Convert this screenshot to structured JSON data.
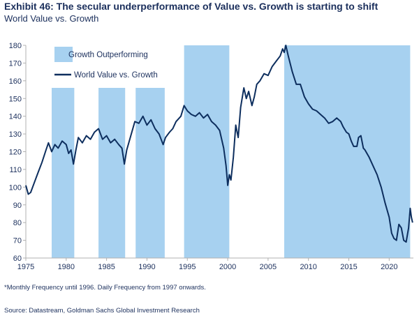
{
  "header": {
    "title": "Exhibit 46: The secular underperformance of Value vs. Growth is starting to shift",
    "subtitle": "World Value vs. Growth"
  },
  "footer": {
    "note": "*Monthly Frequency until 1996. Daily Frequency from 1997 onwards.",
    "source": "Source: Datastream, Goldman Sachs Global Investment Research"
  },
  "colors": {
    "line": "#0d2e5e",
    "shading": "#a7d1f0",
    "text": "#1b2f5c",
    "axis": "#b0b0b0"
  },
  "chart_data": {
    "type": "line",
    "xlim": [
      1975,
      2023
    ],
    "ylim": [
      60,
      180
    ],
    "x_ticks": [
      1975,
      1980,
      1985,
      1990,
      1995,
      2000,
      2005,
      2010,
      2015,
      2020
    ],
    "y_ticks": [
      60,
      70,
      80,
      90,
      100,
      110,
      120,
      130,
      140,
      150,
      160,
      170,
      180
    ],
    "legend": {
      "position": "top-left",
      "entries": [
        {
          "label": "Growth Outperforming",
          "kind": "area"
        },
        {
          "label": "World Value vs. Growth",
          "kind": "line"
        }
      ]
    },
    "shaded_periods": [
      {
        "start": 1978.2,
        "end": 1981.0,
        "ymax": 156
      },
      {
        "start": 1984.0,
        "end": 1987.3,
        "ymax": 156
      },
      {
        "start": 1988.6,
        "end": 1992.2,
        "ymax": 156
      },
      {
        "start": 1994.6,
        "end": 2000.2,
        "ymax": 180
      },
      {
        "start": 2007.0,
        "end": 2022.6,
        "ymax": 180
      }
    ],
    "series": [
      {
        "name": "World Value vs. Growth",
        "points": [
          [
            1975.0,
            101
          ],
          [
            1975.3,
            96
          ],
          [
            1975.6,
            97
          ],
          [
            1976.0,
            102
          ],
          [
            1976.5,
            108
          ],
          [
            1977.0,
            114
          ],
          [
            1977.5,
            121
          ],
          [
            1977.8,
            125
          ],
          [
            1978.2,
            120
          ],
          [
            1978.6,
            124
          ],
          [
            1979.0,
            122
          ],
          [
            1979.5,
            126
          ],
          [
            1980.0,
            124
          ],
          [
            1980.3,
            119
          ],
          [
            1980.6,
            121
          ],
          [
            1980.9,
            113
          ],
          [
            1981.2,
            121
          ],
          [
            1981.5,
            128
          ],
          [
            1982.0,
            125
          ],
          [
            1982.5,
            129
          ],
          [
            1983.0,
            127
          ],
          [
            1983.5,
            131
          ],
          [
            1984.0,
            133
          ],
          [
            1984.5,
            127
          ],
          [
            1985.0,
            129
          ],
          [
            1985.5,
            125
          ],
          [
            1986.0,
            127
          ],
          [
            1986.5,
            124
          ],
          [
            1986.9,
            122
          ],
          [
            1987.2,
            113
          ],
          [
            1987.5,
            121
          ],
          [
            1988.0,
            129
          ],
          [
            1988.5,
            137
          ],
          [
            1989.0,
            136
          ],
          [
            1989.5,
            140
          ],
          [
            1990.0,
            135
          ],
          [
            1990.5,
            138
          ],
          [
            1991.0,
            133
          ],
          [
            1991.5,
            130
          ],
          [
            1992.0,
            124
          ],
          [
            1992.3,
            128
          ],
          [
            1992.8,
            131
          ],
          [
            1993.2,
            133
          ],
          [
            1993.6,
            137
          ],
          [
            1994.2,
            140
          ],
          [
            1994.6,
            146
          ],
          [
            1995.0,
            143
          ],
          [
            1995.5,
            141
          ],
          [
            1996.0,
            140
          ],
          [
            1996.5,
            142
          ],
          [
            1997.0,
            139
          ],
          [
            1997.5,
            141
          ],
          [
            1998.0,
            137
          ],
          [
            1998.5,
            135
          ],
          [
            1999.0,
            132
          ],
          [
            1999.5,
            122
          ],
          [
            1999.8,
            112
          ],
          [
            2000.0,
            101
          ],
          [
            2000.2,
            107
          ],
          [
            2000.4,
            104
          ],
          [
            2000.7,
            117
          ],
          [
            2001.0,
            135
          ],
          [
            2001.3,
            128
          ],
          [
            2001.6,
            145
          ],
          [
            2002.0,
            156
          ],
          [
            2002.3,
            150
          ],
          [
            2002.6,
            154
          ],
          [
            2003.0,
            146
          ],
          [
            2003.3,
            151
          ],
          [
            2003.6,
            158
          ],
          [
            2004.0,
            160
          ],
          [
            2004.5,
            164
          ],
          [
            2005.0,
            163
          ],
          [
            2005.5,
            168
          ],
          [
            2006.0,
            171
          ],
          [
            2006.5,
            174
          ],
          [
            2006.8,
            178
          ],
          [
            2007.0,
            176
          ],
          [
            2007.2,
            180
          ],
          [
            2007.5,
            174
          ],
          [
            2008.0,
            165
          ],
          [
            2008.5,
            158
          ],
          [
            2009.0,
            158
          ],
          [
            2009.5,
            151
          ],
          [
            2010.0,
            147
          ],
          [
            2010.5,
            144
          ],
          [
            2011.0,
            143
          ],
          [
            2011.5,
            141
          ],
          [
            2012.0,
            139
          ],
          [
            2012.5,
            136
          ],
          [
            2013.0,
            137
          ],
          [
            2013.5,
            139
          ],
          [
            2014.0,
            137
          ],
          [
            2014.3,
            134
          ],
          [
            2014.7,
            131
          ],
          [
            2015.0,
            130
          ],
          [
            2015.3,
            126
          ],
          [
            2015.6,
            123
          ],
          [
            2016.0,
            123
          ],
          [
            2016.2,
            128
          ],
          [
            2016.5,
            129
          ],
          [
            2016.8,
            122
          ],
          [
            2017.0,
            121
          ],
          [
            2017.5,
            117
          ],
          [
            2018.0,
            112
          ],
          [
            2018.5,
            107
          ],
          [
            2019.0,
            100
          ],
          [
            2019.5,
            91
          ],
          [
            2020.0,
            83
          ],
          [
            2020.3,
            74
          ],
          [
            2020.6,
            71
          ],
          [
            2020.9,
            70
          ],
          [
            2021.2,
            79
          ],
          [
            2021.5,
            77
          ],
          [
            2021.8,
            70
          ],
          [
            2022.1,
            69
          ],
          [
            2022.4,
            77
          ],
          [
            2022.6,
            88
          ],
          [
            2022.75,
            83
          ],
          [
            2022.9,
            80
          ]
        ]
      }
    ]
  }
}
